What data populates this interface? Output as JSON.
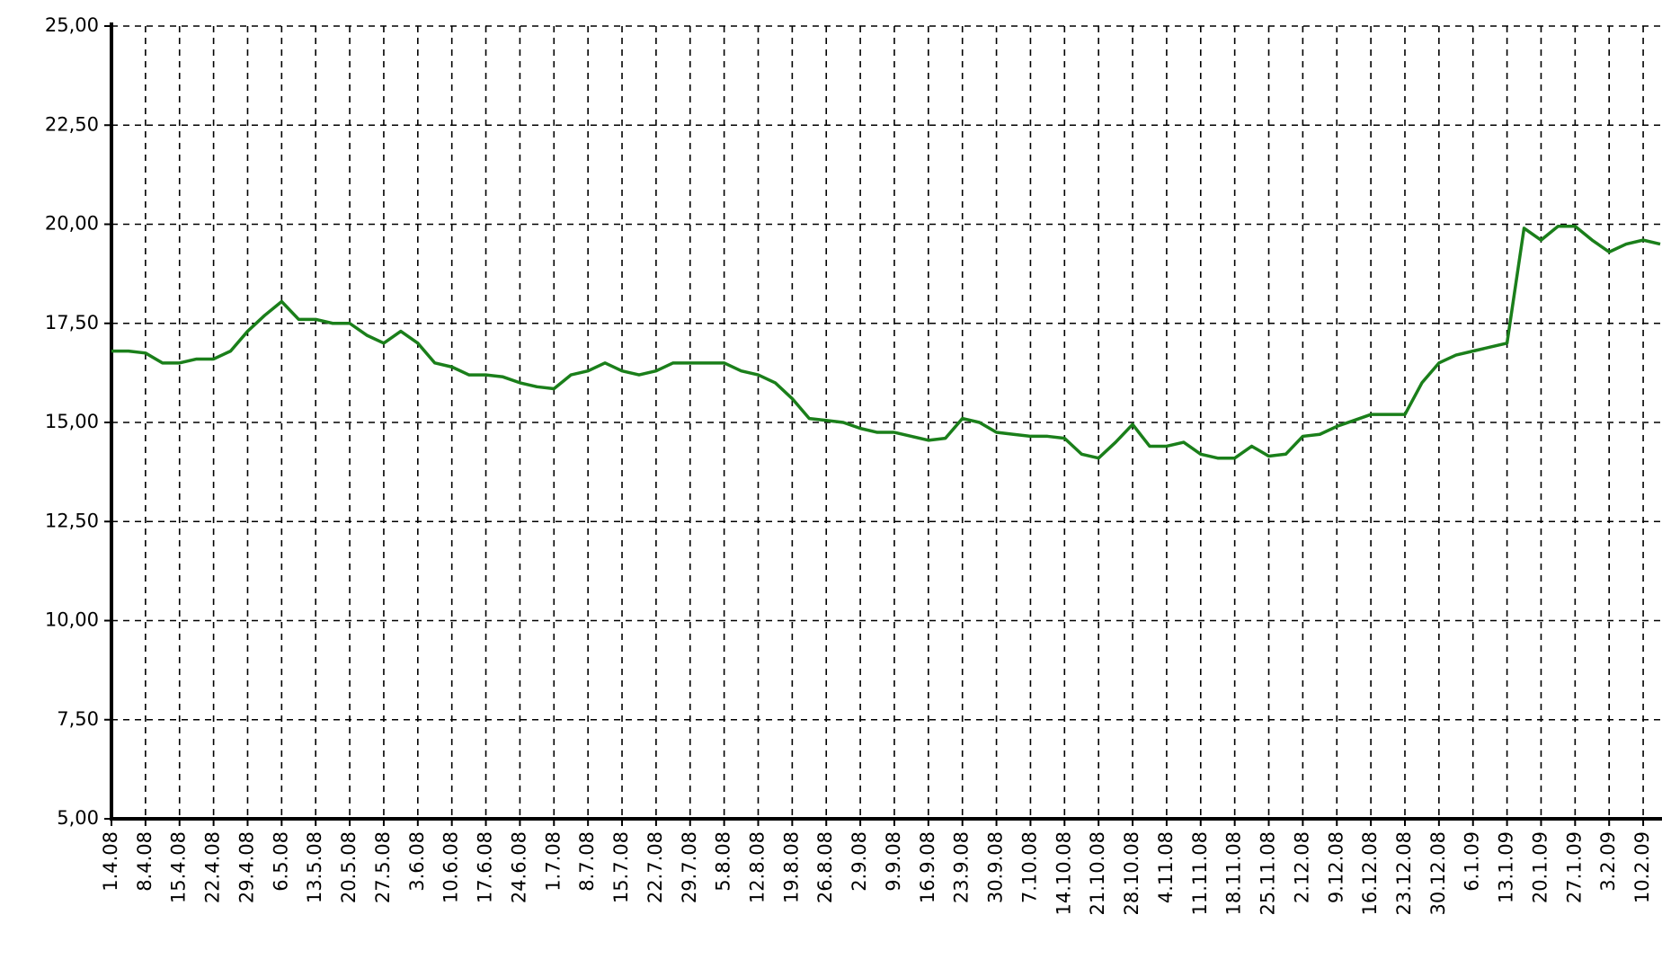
{
  "chart_data": {
    "type": "line",
    "color": "#1a7f1a",
    "grid": true,
    "categories": [
      "1.4.08",
      null,
      "8.4.08",
      null,
      "15.4.08",
      null,
      "22.4.08",
      null,
      "29.4.08",
      null,
      "6.5.08",
      null,
      "13.5.08",
      null,
      "20.5.08",
      null,
      "27.5.08",
      null,
      "3.6.08",
      null,
      "10.6.08",
      null,
      "17.6.08",
      null,
      "24.6.08",
      null,
      "1.7.08",
      null,
      "8.7.08",
      null,
      "15.7.08",
      null,
      "22.7.08",
      null,
      "29.7.08",
      null,
      "5.8.08",
      null,
      "12.8.08",
      null,
      "19.8.08",
      null,
      "26.8.08",
      null,
      "2.9.08",
      null,
      "9.9.08",
      null,
      "16.9.08",
      null,
      "23.9.08",
      null,
      "30.9.08",
      null,
      "7.10.08",
      null,
      "14.10.08",
      null,
      "21.10.08",
      null,
      "28.10.08",
      null,
      "4.11.08",
      null,
      "11.11.08",
      null,
      "18.11.08",
      null,
      "25.11.08",
      null,
      "2.12.08",
      null,
      "9.12.08",
      null,
      "16.12.08",
      null,
      "23.12.08",
      null,
      "30.12.08",
      null,
      "6.1.09",
      null,
      "13.1.09",
      null,
      "20.1.09",
      null,
      "27.1.09",
      null,
      "3.2.09",
      null,
      "10.2.09",
      null
    ],
    "values": [
      16.8,
      16.8,
      16.75,
      16.5,
      16.5,
      16.6,
      16.6,
      16.8,
      17.3,
      17.7,
      18.05,
      17.6,
      17.6,
      17.5,
      17.5,
      17.2,
      17.0,
      17.3,
      17.0,
      16.5,
      16.4,
      16.2,
      16.2,
      16.15,
      16.0,
      15.9,
      15.85,
      16.2,
      16.3,
      16.5,
      16.3,
      16.2,
      16.3,
      16.5,
      16.5,
      16.5,
      16.5,
      16.3,
      16.2,
      16.0,
      15.6,
      15.1,
      15.05,
      15.0,
      14.85,
      14.75,
      14.75,
      14.65,
      14.55,
      14.6,
      15.1,
      15.0,
      14.75,
      14.7,
      14.65,
      14.65,
      14.6,
      14.2,
      14.1,
      14.5,
      14.95,
      14.4,
      14.4,
      14.5,
      14.2,
      14.1,
      14.1,
      14.4,
      14.15,
      14.2,
      14.65,
      14.7,
      14.9,
      15.05,
      15.2,
      15.2,
      15.2,
      16.0,
      16.5,
      16.7,
      16.8,
      16.9,
      17.0,
      19.9,
      19.6,
      19.95,
      19.95,
      19.6,
      19.3,
      19.5,
      19.6,
      19.5
    ],
    "ylim": [
      5,
      25
    ],
    "yticks": [
      {
        "value": 5,
        "label": "5,00"
      },
      {
        "value": 7.5,
        "label": "7,50"
      },
      {
        "value": 10,
        "label": "10,00"
      },
      {
        "value": 12.5,
        "label": "12,50"
      },
      {
        "value": 15,
        "label": "15,00"
      },
      {
        "value": 17.5,
        "label": "17,50"
      },
      {
        "value": 20,
        "label": "20,00"
      },
      {
        "value": 22.5,
        "label": "22,50"
      },
      {
        "value": 25,
        "label": "25,00"
      }
    ]
  }
}
